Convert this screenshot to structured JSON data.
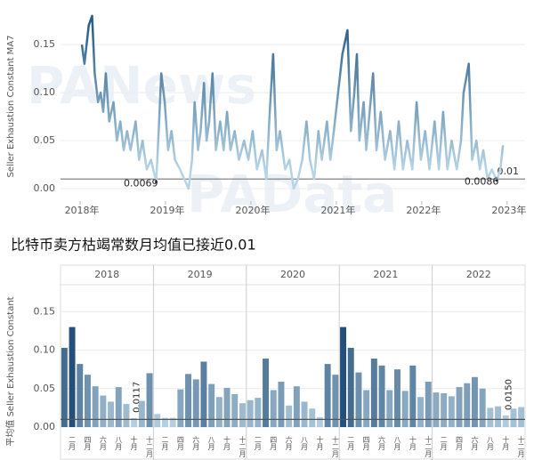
{
  "watermarks": [
    "PANews",
    "PAData"
  ],
  "chart_data": [
    {
      "type": "line",
      "y_label": "Seller Exhaustion Constant MA7",
      "color_low": "#b5d4e6",
      "color_high": "#2a5d88",
      "xlim": [
        2017.77,
        2023.21
      ],
      "xticks": [
        {
          "value": 2018,
          "label": "2018年"
        },
        {
          "value": 2019,
          "label": "2019年"
        },
        {
          "value": 2020,
          "label": "2020年"
        },
        {
          "value": 2021,
          "label": "2021年"
        },
        {
          "value": 2022,
          "label": "2022年"
        },
        {
          "value": 2023,
          "label": "2023年"
        }
      ],
      "ylim": [
        0,
        0.19
      ],
      "yticks": [
        {
          "value": 0,
          "label": "0.00"
        },
        {
          "value": 0.05,
          "label": "0.05"
        },
        {
          "value": 0.1,
          "label": "0.10"
        },
        0.15
      ],
      "reference_line": 0.01,
      "annotations": [
        {
          "x": 2018.89,
          "y": 0.0069
        },
        {
          "x": 2022.88,
          "y": 0.0086
        }
      ],
      "x": [
        2018.02,
        2018.05,
        2018.1,
        2018.14,
        2018.17,
        2018.21,
        2018.24,
        2018.27,
        2018.3,
        2018.34,
        2018.39,
        2018.43,
        2018.47,
        2018.51,
        2018.55,
        2018.59,
        2018.65,
        2018.69,
        2018.73,
        2018.78,
        2018.83,
        2018.89,
        2018.92,
        2018.95,
        2018.99,
        2019.03,
        2019.07,
        2019.11,
        2019.17,
        2019.22,
        2019.27,
        2019.31,
        2019.34,
        2019.38,
        2019.41,
        2019.45,
        2019.48,
        2019.51,
        2019.55,
        2019.59,
        2019.64,
        2019.68,
        2019.72,
        2019.76,
        2019.81,
        2019.86,
        2019.92,
        2019.97,
        2020.02,
        2020.07,
        2020.13,
        2020.18,
        2020.22,
        2020.26,
        2020.3,
        2020.34,
        2020.4,
        2020.45,
        2020.5,
        2020.55,
        2020.6,
        2020.65,
        2020.69,
        2020.74,
        2020.79,
        2020.83,
        2020.89,
        2020.93,
        2020.97,
        2021.02,
        2021.07,
        2021.13,
        2021.17,
        2021.21,
        2021.24,
        2021.27,
        2021.32,
        2021.35,
        2021.4,
        2021.43,
        2021.47,
        2021.52,
        2021.57,
        2021.63,
        2021.68,
        2021.73,
        2021.78,
        2021.83,
        2021.89,
        2021.94,
        2021.99,
        2022.04,
        2022.09,
        2022.15,
        2022.2,
        2022.25,
        2022.3,
        2022.35,
        2022.41,
        2022.46,
        2022.49,
        2022.55,
        2022.59,
        2022.64,
        2022.68,
        2022.72,
        2022.77,
        2022.82,
        2022.88,
        2022.92,
        2022.95
      ],
      "values": [
        0.15,
        0.13,
        0.17,
        0.18,
        0.12,
        0.09,
        0.1,
        0.08,
        0.12,
        0.07,
        0.09,
        0.05,
        0.07,
        0.04,
        0.06,
        0.04,
        0.07,
        0.03,
        0.05,
        0.02,
        0.03,
        0.0069,
        0.06,
        0.12,
        0.09,
        0.04,
        0.06,
        0.03,
        0.02,
        0.01,
        0.0,
        0.03,
        0.09,
        0.04,
        0.06,
        0.11,
        0.05,
        0.07,
        0.12,
        0.04,
        0.07,
        0.04,
        0.08,
        0.04,
        0.06,
        0.03,
        0.05,
        0.03,
        0.06,
        0.02,
        0.04,
        0.01,
        0.08,
        0.14,
        0.04,
        0.06,
        0.02,
        0.03,
        0.0,
        0.01,
        0.03,
        0.07,
        0.03,
        0.01,
        0.06,
        0.03,
        0.07,
        0.03,
        0.06,
        0.1,
        0.14,
        0.165,
        0.06,
        0.1,
        0.14,
        0.05,
        0.09,
        0.04,
        0.09,
        0.12,
        0.04,
        0.08,
        0.03,
        0.06,
        0.02,
        0.07,
        0.02,
        0.05,
        0.02,
        0.09,
        0.03,
        0.06,
        0.02,
        0.07,
        0.02,
        0.08,
        0.02,
        0.05,
        0.02,
        0.05,
        0.1,
        0.13,
        0.03,
        0.05,
        0.02,
        0.04,
        0.01,
        0.02,
        0.0086,
        0.02,
        0.045
      ]
    },
    {
      "type": "bar",
      "title": "比特币卖方枯竭常数月均值已接近0.01",
      "y_label": "平均值 Seller Exhaustion Constant",
      "color_low": "#c3dbe9",
      "color_high": "#234f7a",
      "ylim": [
        0,
        0.185
      ],
      "yticks": [
        {
          "value": 0,
          "label": "0.00"
        },
        {
          "value": 0.05,
          "label": "0.05"
        },
        {
          "value": 0.1,
          "label": "0.10"
        },
        0.15
      ],
      "reference_line": 0.01,
      "groups": [
        {
          "name": "2018",
          "categories": [
            null,
            "二月",
            null,
            "四月",
            null,
            "六月",
            null,
            "八月",
            null,
            "十月",
            null,
            "十二月"
          ],
          "values": [
            0.103,
            0.13,
            0.082,
            0.068,
            0.053,
            0.041,
            0.033,
            0.052,
            0.03,
            0.0117,
            0.034,
            0.07
          ],
          "value_labels": [
            null,
            null,
            null,
            null,
            null,
            null,
            null,
            null,
            null,
            "0.0117",
            null,
            null
          ]
        },
        {
          "name": "2019",
          "categories": [
            null,
            "二月",
            null,
            "四月",
            null,
            "六月",
            null,
            "八月",
            null,
            "十月",
            null,
            "十二月"
          ],
          "values": [
            0.017,
            0.012,
            0.012,
            0.049,
            0.069,
            0.062,
            0.085,
            0.056,
            0.039,
            0.051,
            0.043,
            0.031
          ]
        },
        {
          "name": "2020",
          "categories": [
            null,
            "二月",
            null,
            "四月",
            null,
            "六月",
            null,
            "八月",
            null,
            "十月",
            null,
            "十二月"
          ],
          "values": [
            0.035,
            0.038,
            0.089,
            0.048,
            0.059,
            0.028,
            0.053,
            0.033,
            0.024,
            0.013,
            0.082,
            0.068
          ]
        },
        {
          "name": "2021",
          "categories": [
            null,
            "二月",
            null,
            "四月",
            null,
            "六月",
            null,
            "八月",
            null,
            "十月",
            null,
            "十二月"
          ],
          "values": [
            0.13,
            0.103,
            0.071,
            0.048,
            0.089,
            0.08,
            0.048,
            0.075,
            0.047,
            0.08,
            0.039,
            0.059
          ]
        },
        {
          "name": "2022",
          "categories": [
            null,
            "二月",
            null,
            "四月",
            null,
            "六月",
            null,
            "八月",
            null,
            "十月",
            null,
            "十二月"
          ],
          "values": [
            0.045,
            0.044,
            0.04,
            0.052,
            0.057,
            0.065,
            0.05,
            0.025,
            0.027,
            0.015,
            0.024,
            0.026
          ],
          "value_labels": [
            null,
            null,
            null,
            null,
            null,
            null,
            null,
            null,
            null,
            "0.0150",
            null,
            null
          ]
        }
      ]
    }
  ]
}
